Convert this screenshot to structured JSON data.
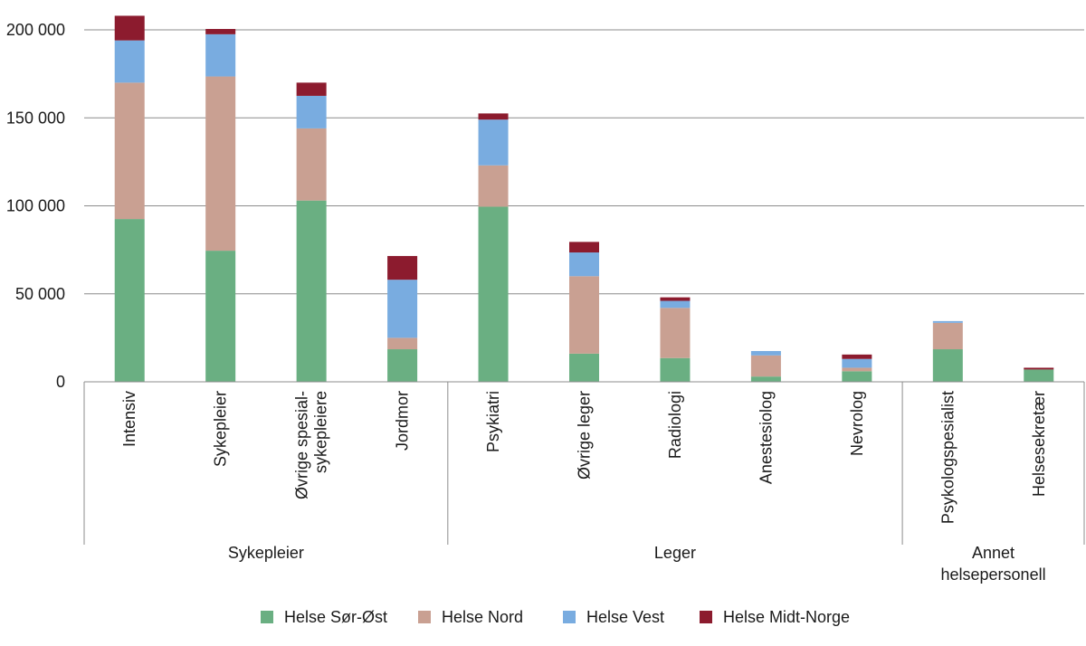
{
  "chart_data": {
    "type": "bar",
    "stacked": true,
    "categories": [
      "Intensiv",
      "Sykepleier",
      "Øvrige spesial-sykepleiere",
      "Jordmor",
      "Psykiatri",
      "Øvrige leger",
      "Radiologi",
      "Anestesiolog",
      "Nevrolog",
      "Psykologspesialist",
      "Helsesekretær"
    ],
    "category_lines": [
      [
        "Intensiv"
      ],
      [
        "Sykepleier"
      ],
      [
        "Øvrige spesial-",
        "sykepleiere"
      ],
      [
        "Jordmor"
      ],
      [
        "Psykiatri"
      ],
      [
        "Øvrige leger"
      ],
      [
        "Radiologi"
      ],
      [
        "Anestesiolog"
      ],
      [
        "Nevrolog"
      ],
      [
        "Psykologspesialist"
      ],
      [
        "Helsesekretær"
      ]
    ],
    "groups": [
      {
        "label_lines": [
          "Sykepleier"
        ],
        "categories": [
          "Intensiv",
          "Sykepleier",
          "Øvrige spesial-sykepleiere",
          "Jordmor"
        ]
      },
      {
        "label_lines": [
          "Leger"
        ],
        "categories": [
          "Psykiatri",
          "Øvrige leger",
          "Radiologi",
          "Anestesiolog",
          "Nevrolog"
        ]
      },
      {
        "label_lines": [
          "Annet",
          "helsepersonell"
        ],
        "categories": [
          "Psykologspesialist",
          "Helsesekretær"
        ]
      }
    ],
    "series": [
      {
        "name": "Helse Sør-Øst",
        "color": "#6aaf82",
        "values": [
          92500,
          74500,
          103000,
          18500,
          99500,
          16000,
          13500,
          3000,
          6000,
          18500,
          7000
        ]
      },
      {
        "name": "Helse Nord",
        "color": "#c9a092",
        "values": [
          77500,
          99000,
          41000,
          6500,
          23500,
          44000,
          28500,
          12000,
          2000,
          15000,
          0
        ]
      },
      {
        "name": "Helse Vest",
        "color": "#79ace0",
        "values": [
          24000,
          24000,
          18500,
          33000,
          26000,
          13500,
          4000,
          2500,
          5000,
          1000,
          0
        ]
      },
      {
        "name": "Helse Midt-Norge",
        "color": "#8c1b2e",
        "values": [
          14000,
          3000,
          7500,
          13500,
          3500,
          6000,
          2000,
          0,
          2500,
          0,
          1000
        ]
      }
    ],
    "ylim": [
      0,
      200000
    ],
    "yticks": [
      0,
      50000,
      100000,
      150000,
      200000
    ],
    "ytick_labels": [
      "0",
      "50 000",
      "100 000",
      "150 000",
      "200 000"
    ],
    "grid": true,
    "legend_position": "bottom"
  }
}
